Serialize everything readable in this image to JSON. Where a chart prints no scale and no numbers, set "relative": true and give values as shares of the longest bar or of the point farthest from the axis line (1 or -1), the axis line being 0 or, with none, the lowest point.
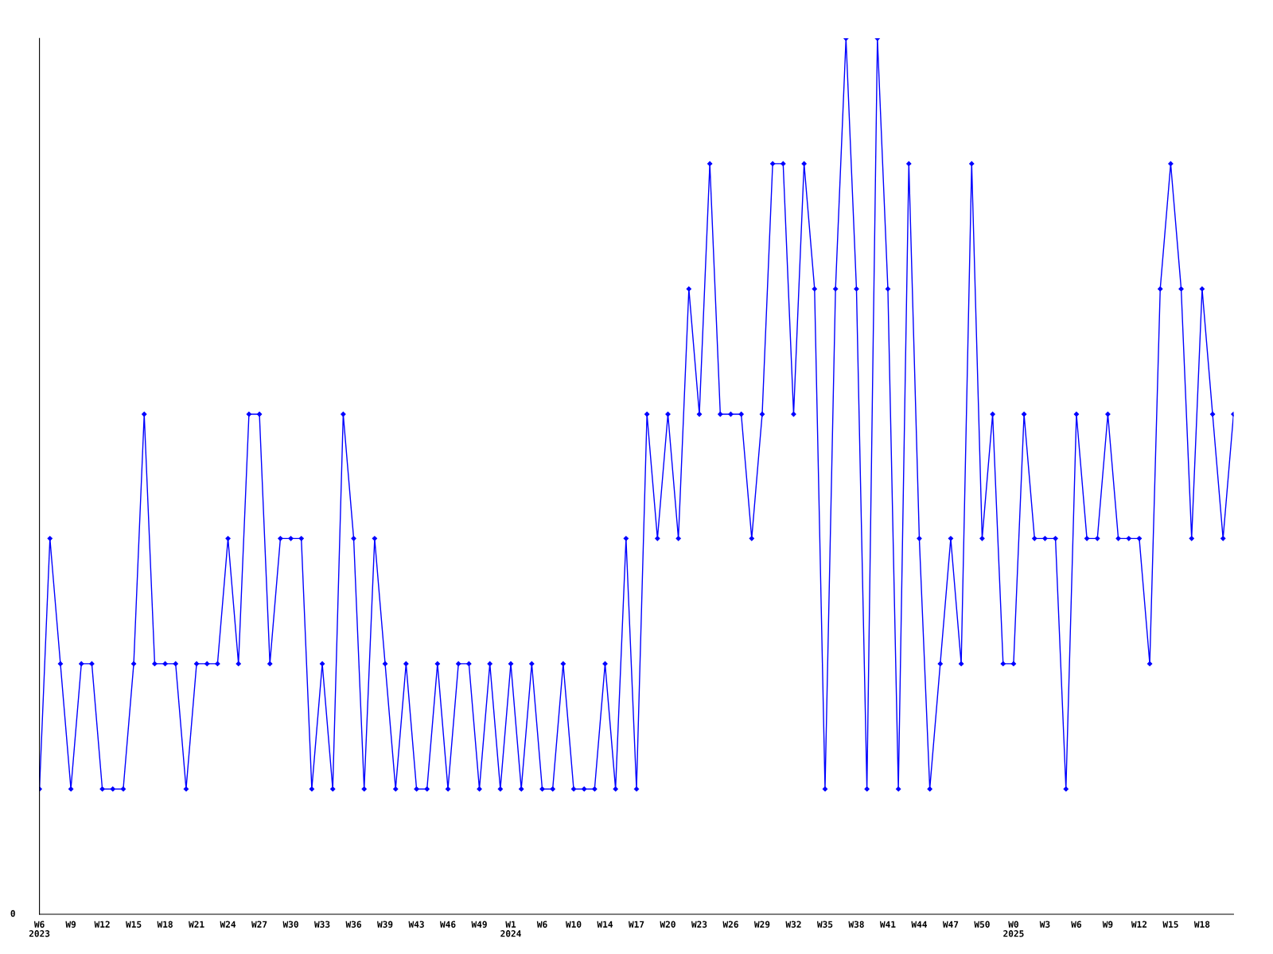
{
  "chart_data": {
    "type": "line",
    "relative": true,
    "color": "#0000ff",
    "marker": "diamond",
    "line_style": "solid",
    "grid": false,
    "legend": false,
    "tick_labels": "x",
    "annotations": [
      "0"
    ],
    "categories": [
      "W6\n2023",
      null,
      null,
      "W9",
      null,
      null,
      "W12",
      null,
      null,
      "W15",
      null,
      null,
      "W18",
      null,
      null,
      "W21",
      null,
      null,
      "W24",
      null,
      null,
      "W27",
      null,
      null,
      "W30",
      null,
      null,
      "W33",
      null,
      null,
      "W36",
      null,
      null,
      "W39",
      null,
      null,
      "W43",
      null,
      null,
      "W46",
      null,
      null,
      "W49",
      null,
      null,
      "W1\n2024",
      null,
      null,
      "W6",
      null,
      null,
      "W10",
      null,
      null,
      "W14",
      null,
      null,
      "W17",
      null,
      null,
      "W20",
      null,
      null,
      "W23",
      null,
      null,
      "W26",
      null,
      null,
      "W29",
      null,
      null,
      "W32",
      null,
      null,
      "W35",
      null,
      null,
      "W38",
      null,
      null,
      "W41",
      null,
      null,
      "W44",
      null,
      null,
      "W47",
      null,
      null,
      "W50",
      null,
      null,
      "W0\n2025",
      null,
      null,
      "W3",
      null,
      null,
      "W6",
      null,
      null,
      "W9",
      null,
      null,
      "W12",
      null,
      null,
      "W15",
      null,
      null,
      "W18",
      null,
      null,
      null
    ],
    "values": [
      0.143,
      0.429,
      0.286,
      0.143,
      0.286,
      0.286,
      0.143,
      0.143,
      0.143,
      0.286,
      0.571,
      0.286,
      0.286,
      0.286,
      0.143,
      0.286,
      0.286,
      0.286,
      0.429,
      0.286,
      0.571,
      0.571,
      0.286,
      0.429,
      0.429,
      0.429,
      0.143,
      0.286,
      0.143,
      0.571,
      0.429,
      0.143,
      0.429,
      0.286,
      0.143,
      0.286,
      0.143,
      0.143,
      0.286,
      0.143,
      0.286,
      0.286,
      0.143,
      0.286,
      0.143,
      0.286,
      0.143,
      0.286,
      0.143,
      0.143,
      0.286,
      0.143,
      0.143,
      0.143,
      0.286,
      0.143,
      0.429,
      0.143,
      0.571,
      0.429,
      0.571,
      0.429,
      0.714,
      0.571,
      0.857,
      0.571,
      0.571,
      0.571,
      0.429,
      0.571,
      0.857,
      0.857,
      0.571,
      0.857,
      0.714,
      0.143,
      0.714,
      1,
      0.714,
      0.143,
      1,
      0.714,
      0.143,
      0.857,
      0.429,
      0.143,
      0.286,
      0.429,
      0.286,
      0.857,
      0.429,
      0.571,
      0.286,
      0.286,
      0.571,
      0.429,
      0.429,
      0.429,
      0.143,
      0.571,
      0.429,
      0.429,
      0.571,
      0.429,
      0.429,
      0.429,
      0.286,
      0.714,
      0.857,
      0.714,
      0.429,
      0.714,
      0.571,
      0.429,
      0.571
    ]
  }
}
